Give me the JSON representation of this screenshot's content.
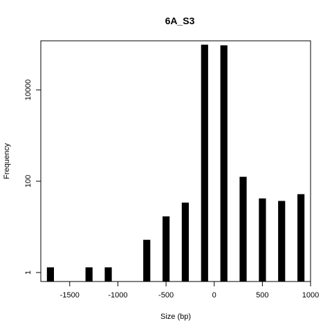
{
  "chart_data": {
    "type": "bar",
    "title": "6A_S3",
    "xlabel": "Size (bp)",
    "ylabel": "Frequency",
    "y_scale": "log10",
    "xlim": [
      -1800,
      1000
    ],
    "ylim": [
      0.8,
      100000
    ],
    "x_ticks": [
      -1500,
      -1000,
      -500,
      0,
      500,
      1000
    ],
    "x_tick_labels": [
      "-1500",
      "-1000",
      "-500",
      "0",
      "500",
      "1000"
    ],
    "y_ticks": [
      1,
      100,
      10000
    ],
    "y_tick_labels": [
      "1",
      "100",
      "10000"
    ],
    "bar_width": 100,
    "bin_centers": [
      -1700,
      -1300,
      -1100,
      -700,
      -500,
      -300,
      -100,
      100,
      300,
      500,
      700,
      900
    ],
    "values": [
      1.3,
      1.3,
      1.3,
      5.2,
      17,
      34,
      98000,
      95000,
      125,
      42,
      37,
      52
    ],
    "bar_color": "#000000",
    "grid": false,
    "legend": "none"
  }
}
